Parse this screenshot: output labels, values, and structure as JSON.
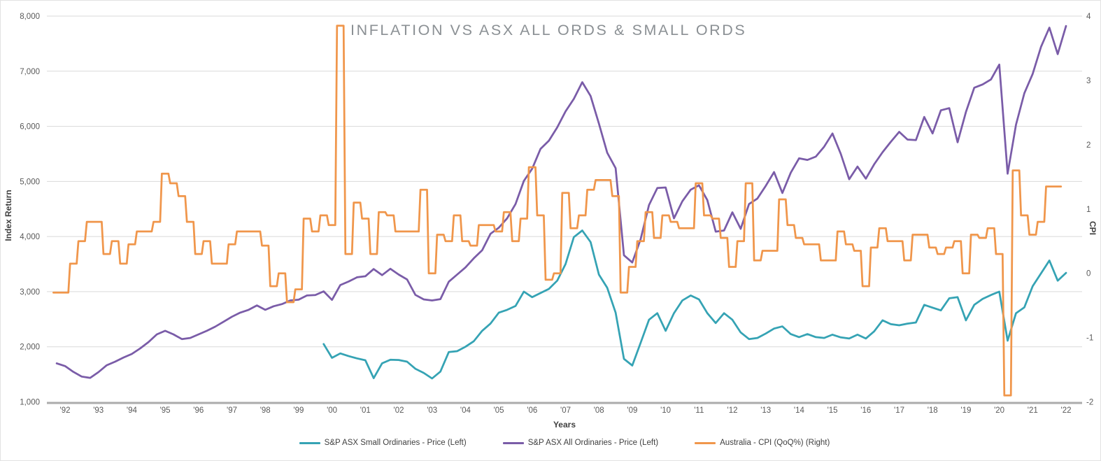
{
  "title": "INFLATION VS ASX ALL ORDS & SMALL ORDS",
  "legend": {
    "items": [
      {
        "label": "S&P ASX Small Ordinaries - Price (Left)",
        "color": "#35a3b4"
      },
      {
        "label": "S&P ASX All Ordinaries - Price (Left)",
        "color": "#7a5ca8"
      },
      {
        "label": "Australia - CPI (QoQ%) (Right)",
        "color": "#f0964b"
      }
    ]
  },
  "chart_data": {
    "type": "line",
    "title": "INFLATION VS ASX ALL ORDS & SMALL ORDS",
    "grid": "horizontal-only",
    "legend_position": "bottom",
    "axes": {
      "left": {
        "title": "Index Return",
        "min": 1000,
        "max": 8000,
        "tick_step": 1000,
        "tick_labels": [
          "1,000",
          "2,000",
          "3,000",
          "4,000",
          "5,000",
          "6,000",
          "7,000",
          "8,000"
        ]
      },
      "right": {
        "title": "CPI",
        "min": -2,
        "max": 4,
        "tick_step": 1,
        "tick_labels": [
          "-2",
          "-1",
          "0",
          "1",
          "2",
          "3",
          "4"
        ]
      },
      "x": {
        "title": "Years",
        "start": 1992,
        "end": 2022,
        "tick_labels": [
          "'92",
          "'93",
          "'94",
          "'95",
          "'96",
          "'97",
          "'98",
          "'99",
          "'00",
          "'01",
          "'02",
          "'03",
          "'04",
          "'05",
          "'06",
          "'07",
          "'08",
          "'09",
          "'10",
          "'11",
          "'12",
          "'13",
          "'14",
          "'15",
          "'16",
          "'17",
          "'18",
          "'19",
          "'20",
          "'21",
          "'22"
        ]
      }
    },
    "sample_interval_years": 0.25,
    "series": [
      {
        "name": "small-ords",
        "label": "S&P ASX Small Ordinaries - Price (Left)",
        "color": "#35a3b4",
        "axis": "left",
        "style": "line",
        "start_year": 1999.75,
        "values": [
          2050,
          1800,
          1880,
          1830,
          1790,
          1755,
          1430,
          1700,
          1765,
          1760,
          1730,
          1600,
          1525,
          1425,
          1550,
          1905,
          1920,
          2000,
          2100,
          2290,
          2420,
          2620,
          2670,
          2740,
          3000,
          2900,
          2975,
          3050,
          3200,
          3500,
          3990,
          4110,
          3900,
          3310,
          3070,
          2620,
          1780,
          1660,
          2070,
          2490,
          2610,
          2290,
          2610,
          2840,
          2930,
          2860,
          2610,
          2430,
          2610,
          2490,
          2260,
          2140,
          2160,
          2240,
          2330,
          2370,
          2230,
          2175,
          2230,
          2175,
          2160,
          2220,
          2170,
          2150,
          2220,
          2150,
          2280,
          2480,
          2410,
          2390,
          2420,
          2440,
          2760,
          2710,
          2660,
          2880,
          2900,
          2480,
          2760,
          2870,
          2940,
          3000,
          2110,
          2610,
          2715,
          3100,
          3330,
          3565,
          3200,
          3340
        ]
      },
      {
        "name": "all-ords",
        "label": "S&P ASX All Ordinaries - Price (Left)",
        "color": "#7a5ca8",
        "axis": "left",
        "style": "line",
        "start_year": 1991.75,
        "values": [
          1700,
          1650,
          1545,
          1460,
          1435,
          1540,
          1665,
          1730,
          1805,
          1870,
          1970,
          2085,
          2225,
          2290,
          2225,
          2140,
          2160,
          2225,
          2290,
          2365,
          2455,
          2545,
          2620,
          2670,
          2750,
          2670,
          2735,
          2775,
          2840,
          2855,
          2930,
          2940,
          3005,
          2850,
          3120,
          3185,
          3260,
          3280,
          3410,
          3300,
          3415,
          3310,
          3222,
          2941,
          2860,
          2840,
          2865,
          3180,
          3310,
          3440,
          3605,
          3750,
          4050,
          4160,
          4330,
          4590,
          5010,
          5230,
          5590,
          5740,
          5980,
          6270,
          6500,
          6800,
          6550,
          6050,
          5520,
          5240,
          3660,
          3530,
          3950,
          4570,
          4880,
          4890,
          4330,
          4640,
          4850,
          4930,
          4660,
          4090,
          4110,
          4440,
          4140,
          4590,
          4690,
          4920,
          5170,
          4790,
          5160,
          5420,
          5390,
          5450,
          5630,
          5870,
          5500,
          5040,
          5270,
          5050,
          5310,
          5530,
          5720,
          5900,
          5760,
          5750,
          6170,
          5870,
          6290,
          6330,
          5710,
          6260,
          6700,
          6760,
          6850,
          7120,
          5140,
          6030,
          6600,
          6950,
          7440,
          7790,
          7310,
          7820
        ]
      },
      {
        "name": "australia-cpi",
        "label": "Australia - CPI (QoQ%) (Right)",
        "color": "#f0964b",
        "axis": "right",
        "style": "step",
        "start_year": 1991.75,
        "values": [
          -0.3,
          -0.3,
          0.15,
          0.5,
          0.8,
          0.8,
          0.3,
          0.5,
          0.15,
          0.45,
          0.65,
          0.65,
          0.8,
          1.55,
          1.4,
          1.2,
          0.8,
          0.3,
          0.5,
          0.15,
          0.15,
          0.45,
          0.65,
          0.65,
          0.65,
          0.43,
          -0.2,
          0.0,
          -0.45,
          -0.25,
          0.85,
          0.65,
          0.9,
          0.75,
          3.85,
          0.3,
          1.1,
          0.85,
          0.3,
          0.95,
          0.9,
          0.65,
          0.65,
          0.65,
          1.3,
          0.0,
          0.6,
          0.5,
          0.9,
          0.5,
          0.43,
          0.75,
          0.75,
          0.65,
          0.95,
          0.5,
          0.85,
          1.65,
          0.9,
          -0.1,
          0.0,
          1.25,
          0.7,
          0.9,
          1.3,
          1.45,
          1.45,
          1.2,
          -0.3,
          0.1,
          0.5,
          0.95,
          0.55,
          0.9,
          0.8,
          0.7,
          0.7,
          1.4,
          0.9,
          0.85,
          0.55,
          0.1,
          0.5,
          1.4,
          0.2,
          0.35,
          0.35,
          1.15,
          0.75,
          0.55,
          0.45,
          0.45,
          0.2,
          0.2,
          0.65,
          0.45,
          0.35,
          -0.2,
          0.4,
          0.7,
          0.5,
          0.5,
          0.2,
          0.6,
          0.6,
          0.4,
          0.3,
          0.4,
          0.5,
          0.0,
          0.6,
          0.55,
          0.7,
          0.3,
          -1.9,
          1.6,
          0.9,
          0.6,
          0.8,
          1.35,
          1.35
        ]
      }
    ]
  },
  "colors": {
    "gridline": "#d9d9d9",
    "axis_line": "#ababab",
    "tick_label": "#595959",
    "axis_title": "#3f3f3f",
    "chart_title": "#8b9094",
    "background": "#ffffff"
  }
}
